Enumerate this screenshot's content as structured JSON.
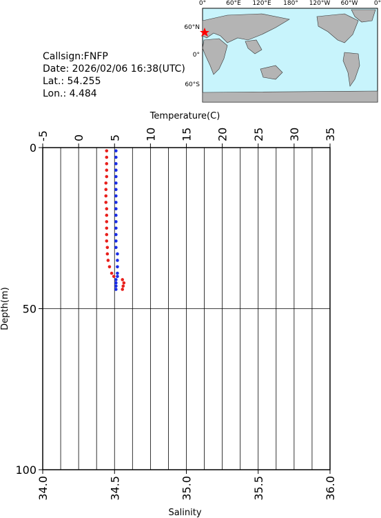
{
  "chart_data": {
    "type": "profile",
    "info": [
      "Callsign:FNFP",
      "Date:  2026/02/06 16:38(UTC)",
      "Lat.:   54.255",
      "Lon.:    4.484"
    ],
    "map": {
      "lon_labels": [
        "0°",
        "60°E",
        "120°E",
        "180°",
        "120°W",
        "60°W",
        "0°"
      ],
      "lat_labels": [
        "60°N",
        "0°",
        "60°S"
      ]
    },
    "xlabel": "Temperature(C)",
    "x2label": "Salinity",
    "ylabel": "Depth(m)",
    "xlim": [
      -5,
      35
    ],
    "xticks": [
      -5,
      0,
      5,
      10,
      15,
      20,
      25,
      30,
      35
    ],
    "x2lim": [
      34.0,
      36.0
    ],
    "x2ticks": [
      {
        "value": 34.0,
        "label": "34.0"
      },
      {
        "value": 34.5,
        "label": "34.5"
      },
      {
        "value": 35.0,
        "label": "35.0"
      },
      {
        "value": 35.5,
        "label": "35.5"
      },
      {
        "value": 36.0,
        "label": "36.0"
      }
    ],
    "ylim": [
      0,
      100
    ],
    "yticks": [
      0,
      50,
      100
    ],
    "grid_x": [
      -2.5,
      0,
      2.5,
      5,
      7.5,
      10,
      12.5,
      15,
      17.5,
      20,
      22.5,
      25,
      27.5,
      30,
      32.5
    ],
    "grid_y": [
      50
    ],
    "depth": [
      1,
      3,
      5,
      7,
      9,
      11,
      13,
      15,
      17,
      19,
      21,
      23,
      25,
      27,
      29,
      31,
      33,
      35,
      37,
      39,
      40,
      41,
      42,
      43,
      44
    ],
    "series": [
      {
        "color": "#e8201c",
        "axis": "x",
        "values": [
          3.9,
          3.9,
          3.9,
          3.9,
          3.9,
          3.8,
          3.8,
          3.8,
          3.8,
          3.9,
          3.9,
          3.9,
          3.9,
          3.9,
          3.9,
          4.0,
          4.0,
          4.1,
          4.3,
          4.6,
          4.9,
          6.1,
          6.3,
          6.2,
          6.1
        ]
      },
      {
        "color": "#1a2ee8",
        "axis": "x2",
        "values": [
          34.51,
          34.51,
          34.51,
          34.51,
          34.51,
          34.51,
          34.51,
          34.51,
          34.51,
          34.51,
          34.51,
          34.51,
          34.51,
          34.51,
          34.51,
          34.51,
          34.52,
          34.52,
          34.52,
          34.52,
          34.52,
          34.51,
          34.51,
          34.51,
          34.51
        ]
      }
    ]
  }
}
